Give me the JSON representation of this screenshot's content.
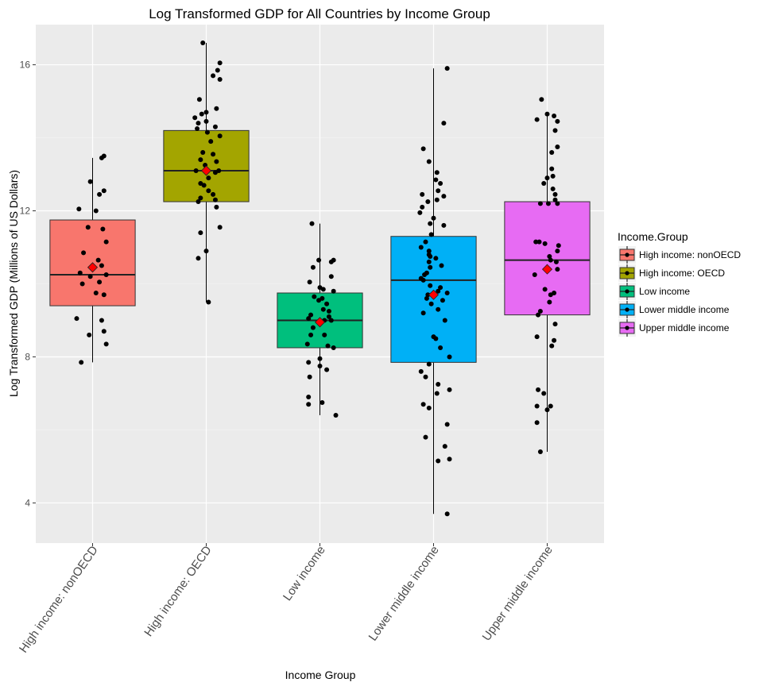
{
  "chart_data": {
    "type": "box",
    "title": "Log Transformed GDP for All Countries by Income Group",
    "xlabel": "Income Group",
    "ylabel": "Log Transformed GDP (Millions of US Dollars)",
    "ylim": [
      2.9,
      17.1
    ],
    "yticks": [
      4,
      8,
      12,
      16
    ],
    "grid": true,
    "legend": {
      "title": "Income.Group",
      "position": "right"
    },
    "categories": [
      "High income: nonOECD",
      "High income: OECD",
      "Low income",
      "Lower middle income",
      "Upper middle income"
    ],
    "colors": [
      "#F8766D",
      "#A3A500",
      "#00BF7D",
      "#00B0F6",
      "#E76BF3"
    ],
    "mean_marker_color": "#FF0000",
    "boxes": [
      {
        "name": "High income: nonOECD",
        "whisker_low": 7.85,
        "q1": 9.4,
        "median": 10.25,
        "q3": 11.75,
        "whisker_high": 13.45,
        "mean": 10.45
      },
      {
        "name": "High income: OECD",
        "whisker_low": 9.5,
        "q1": 12.25,
        "median": 13.1,
        "q3": 14.2,
        "whisker_high": 16.6,
        "mean": 13.1
      },
      {
        "name": "Low income",
        "whisker_low": 6.4,
        "q1": 8.25,
        "median": 9.0,
        "q3": 9.75,
        "whisker_high": 11.65,
        "mean": 8.95
      },
      {
        "name": "Lower middle income",
        "whisker_low": 3.7,
        "q1": 7.85,
        "median": 10.1,
        "q3": 11.3,
        "whisker_high": 15.9,
        "mean": 9.7
      },
      {
        "name": "Upper middle income",
        "whisker_low": 5.4,
        "q1": 9.15,
        "median": 10.65,
        "q3": 12.25,
        "whisker_high": 14.6,
        "mean": 10.4
      }
    ],
    "points": [
      {
        "x": [
          -0.1,
          0.12,
          -0.03,
          0.1,
          0.08,
          -0.14,
          0.03,
          0.1,
          -0.09,
          0.06,
          -0.02,
          0.12,
          -0.11,
          0.08,
          0.05,
          -0.08,
          0.12,
          0.09,
          -0.04,
          0.03,
          -0.12,
          0.06,
          0.1,
          -0.02,
          0.08,
          0.1
        ],
        "y": [
          7.85,
          8.35,
          8.6,
          8.7,
          9.0,
          9.05,
          9.75,
          9.7,
          10.0,
          10.05,
          10.2,
          10.25,
          10.3,
          10.5,
          10.65,
          10.85,
          11.15,
          11.5,
          11.55,
          12.0,
          12.05,
          12.45,
          12.55,
          12.8,
          13.45,
          13.5
        ]
      },
      {
        "x": [
          0.02,
          -0.07,
          0.0,
          -0.05,
          0.12,
          0.09,
          -0.07,
          -0.05,
          0.08,
          0.06,
          0.02,
          -0.02,
          -0.05,
          0.02,
          0.08,
          -0.09,
          0.11,
          -0.01,
          0.09,
          -0.05,
          0.06,
          -0.03,
          0.04,
          0.12,
          0.01,
          -0.08,
          0.08,
          -0.07,
          0.0,
          -0.1,
          -0.04,
          0.0,
          0.09,
          -0.06,
          0.12,
          0.06,
          0.1,
          0.12,
          -0.03
        ],
        "y": [
          9.5,
          10.7,
          10.9,
          11.4,
          11.55,
          12.1,
          12.25,
          12.35,
          12.3,
          12.45,
          12.55,
          12.7,
          12.75,
          12.9,
          13.05,
          13.1,
          13.1,
          13.25,
          13.35,
          13.4,
          13.55,
          13.6,
          13.9,
          14.05,
          14.15,
          14.25,
          14.3,
          14.4,
          14.45,
          14.55,
          14.65,
          14.7,
          14.8,
          15.05,
          15.6,
          15.7,
          15.85,
          16.05,
          16.6
        ]
      },
      {
        "x": [
          0.14,
          -0.1,
          0.02,
          -0.1,
          -0.09,
          0.06,
          0.0,
          -0.1,
          0.0,
          0.12,
          0.07,
          -0.11,
          0.04,
          -0.08,
          -0.06,
          0.1,
          0.04,
          -0.1,
          0.08,
          -0.08,
          0.08,
          0.03,
          0.06,
          -0.01,
          0.02,
          -0.05,
          0.12,
          0.03,
          0.0,
          -0.09,
          0.1,
          -0.06,
          0.1,
          -0.01,
          0.12,
          -0.07
        ],
        "y": [
          6.4,
          6.7,
          6.75,
          6.9,
          7.45,
          7.65,
          7.75,
          7.85,
          7.95,
          8.25,
          8.3,
          8.35,
          8.6,
          8.6,
          8.8,
          9.0,
          9.0,
          9.05,
          9.1,
          9.15,
          9.25,
          9.3,
          9.45,
          9.55,
          9.6,
          9.65,
          9.8,
          9.85,
          9.9,
          10.05,
          10.2,
          10.45,
          10.6,
          10.65,
          10.65,
          11.65
        ]
      },
      {
        "x": [
          0.12,
          0.04,
          0.14,
          0.1,
          -0.07,
          0.12,
          -0.04,
          -0.09,
          0.03,
          0.14,
          0.04,
          -0.07,
          -0.11,
          -0.04,
          0.14,
          0.06,
          0.02,
          0.0,
          0.1,
          -0.09,
          0.04,
          -0.02,
          0.08,
          -0.06,
          -0.05,
          0.12,
          0.04,
          0.06,
          -0.03,
          -0.09,
          -0.11,
          -0.08,
          -0.06,
          -0.03,
          0.07,
          -0.04,
          0.02,
          -0.03,
          -0.04,
          -0.04,
          -0.11,
          -0.07,
          -0.02,
          0.09,
          -0.03,
          0.0,
          -0.12,
          -0.1,
          -0.05,
          0.03,
          0.09,
          -0.1,
          0.04,
          0.06,
          0.02,
          0.03,
          -0.04,
          -0.09,
          0.09,
          0.12
        ],
        "y": [
          3.7,
          5.15,
          5.2,
          5.55,
          5.8,
          6.15,
          6.6,
          6.7,
          7.0,
          7.1,
          7.25,
          7.45,
          7.6,
          7.8,
          8.0,
          8.25,
          8.5,
          8.55,
          9.0,
          9.2,
          9.3,
          9.45,
          9.55,
          9.6,
          9.7,
          9.75,
          9.8,
          9.9,
          9.95,
          10.1,
          10.15,
          10.25,
          10.3,
          10.45,
          10.5,
          10.6,
          10.7,
          10.75,
          10.8,
          10.9,
          11.0,
          11.15,
          11.35,
          11.6,
          11.65,
          11.8,
          11.95,
          12.1,
          12.25,
          12.3,
          12.4,
          12.45,
          12.55,
          12.75,
          12.85,
          13.05,
          13.35,
          13.7,
          14.4,
          15.9
        ]
      },
      {
        "x": [
          -0.06,
          -0.09,
          0.0,
          -0.09,
          0.03,
          -0.03,
          -0.08,
          0.04,
          0.06,
          -0.09,
          0.07,
          -0.08,
          -0.06,
          0.02,
          0.03,
          0.06,
          -0.02,
          -0.11,
          0.09,
          0.08,
          0.03,
          0.02,
          0.09,
          0.1,
          -0.02,
          -0.1,
          -0.07,
          0.09,
          0.01,
          -0.06,
          0.07,
          0.07,
          0.05,
          -0.03,
          0.0,
          0.05,
          0.04,
          0.04,
          0.09,
          0.07,
          0.09,
          -0.09,
          0.06,
          0.0,
          -0.05
        ],
        "y": [
          5.4,
          6.2,
          6.55,
          6.65,
          6.65,
          7.0,
          7.1,
          8.3,
          8.45,
          8.55,
          8.9,
          9.15,
          9.25,
          9.5,
          9.7,
          9.75,
          9.85,
          10.25,
          10.4,
          10.6,
          10.65,
          10.75,
          10.9,
          11.05,
          11.1,
          11.15,
          11.15,
          12.2,
          12.2,
          12.2,
          12.3,
          12.45,
          12.6,
          12.75,
          12.9,
          12.95,
          13.15,
          13.6,
          13.75,
          14.2,
          14.45,
          14.5,
          14.6,
          14.65,
          15.05
        ]
      }
    ]
  }
}
